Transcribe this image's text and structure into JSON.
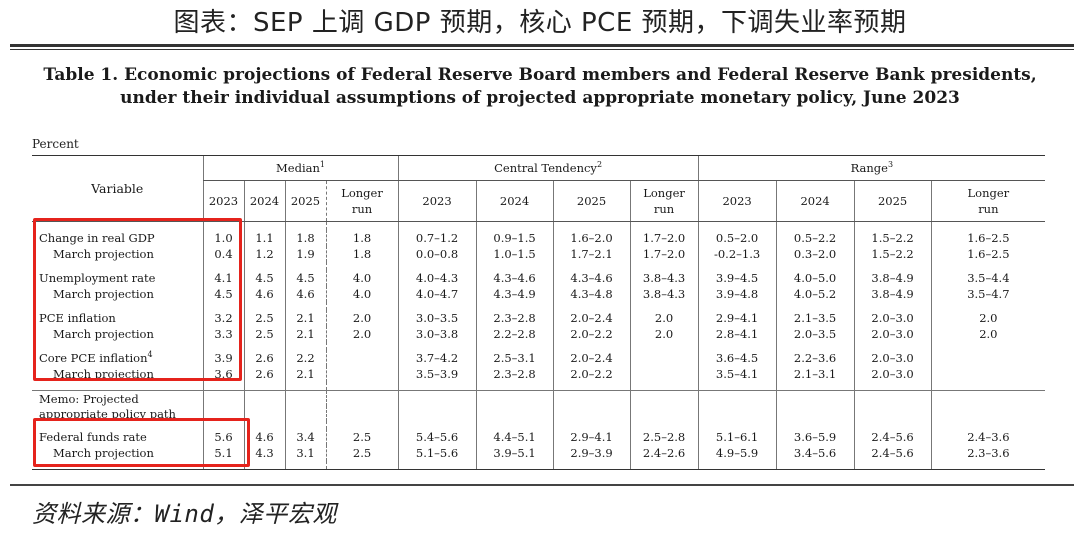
{
  "page_title": "图表：SEP 上调 GDP 预期，核心 PCE 预期，下调失业率预期",
  "table": {
    "caption_line1": "Table 1. Economic projections of Federal Reserve Board members and Federal Reserve Bank presidents,",
    "caption_line2": "under their individual assumptions of projected appropriate monetary policy, June 2023",
    "unit": "Percent",
    "variable_header": "Variable",
    "groups": [
      {
        "label": "Median",
        "note": "1"
      },
      {
        "label": "Central Tendency",
        "note": "2"
      },
      {
        "label": "Range",
        "note": "3"
      }
    ],
    "years": [
      "2023",
      "2024",
      "2025"
    ],
    "longer_run_line1": "Longer",
    "longer_run_line2": "run",
    "rows": {
      "gdp": {
        "label": "Change in real GDP",
        "values": [
          "1.0",
          "1.1",
          "1.8",
          "1.8",
          "0.7–1.2",
          "0.9–1.5",
          "1.6–2.0",
          "1.7–2.0",
          "0.5–2.0",
          "0.5–2.2",
          "1.5–2.2",
          "1.6–2.5"
        ]
      },
      "gdp_march": {
        "label": "March projection",
        "values": [
          "0.4",
          "1.2",
          "1.9",
          "1.8",
          "0.0–0.8",
          "1.0–1.5",
          "1.7–2.1",
          "1.7–2.0",
          "-0.2–1.3",
          "0.3–2.0",
          "1.5–2.2",
          "1.6–2.5"
        ]
      },
      "unemp": {
        "label": "Unemployment rate",
        "values": [
          "4.1",
          "4.5",
          "4.5",
          "4.0",
          "4.0–4.3",
          "4.3–4.6",
          "4.3–4.6",
          "3.8–4.3",
          "3.9–4.5",
          "4.0–5.0",
          "3.8–4.9",
          "3.5–4.4"
        ]
      },
      "unemp_march": {
        "label": "March projection",
        "values": [
          "4.5",
          "4.6",
          "4.6",
          "4.0",
          "4.0–4.7",
          "4.3–4.9",
          "4.3–4.8",
          "3.8–4.3",
          "3.9–4.8",
          "4.0–5.2",
          "3.8–4.9",
          "3.5–4.7"
        ]
      },
      "pce": {
        "label": "PCE inflation",
        "values": [
          "3.2",
          "2.5",
          "2.1",
          "2.0",
          "3.0–3.5",
          "2.3–2.8",
          "2.0–2.4",
          "2.0",
          "2.9–4.1",
          "2.1–3.5",
          "2.0–3.0",
          "2.0"
        ]
      },
      "pce_march": {
        "label": "March projection",
        "values": [
          "3.3",
          "2.5",
          "2.1",
          "2.0",
          "3.0–3.8",
          "2.2–2.8",
          "2.0–2.2",
          "2.0",
          "2.8–4.1",
          "2.0–3.5",
          "2.0–3.0",
          "2.0"
        ]
      },
      "core": {
        "label": "Core PCE inflation",
        "note": "4",
        "values": [
          "3.9",
          "2.6",
          "2.2",
          "",
          "3.7–4.2",
          "2.5–3.1",
          "2.0–2.4",
          "",
          "3.6–4.5",
          "2.2–3.6",
          "2.0–3.0",
          ""
        ]
      },
      "core_march": {
        "label": "March projection",
        "values": [
          "3.6",
          "2.6",
          "2.1",
          "",
          "3.5–3.9",
          "2.3–2.8",
          "2.0–2.2",
          "",
          "3.5–4.1",
          "2.1–3.1",
          "2.0–3.0",
          ""
        ]
      },
      "memo_line1": "Memo: Projected",
      "memo_line2": "appropriate policy path",
      "ffr": {
        "label": "Federal funds rate",
        "values": [
          "5.6",
          "4.6",
          "3.4",
          "2.5",
          "5.4–5.6",
          "4.4–5.1",
          "2.9–4.1",
          "2.5–2.8",
          "5.1–6.1",
          "3.6–5.9",
          "2.4–5.6",
          "2.4–3.6"
        ]
      },
      "ffr_march": {
        "label": "March projection",
        "values": [
          "5.1",
          "4.3",
          "3.1",
          "2.5",
          "5.1–5.6",
          "3.9–5.1",
          "2.9–3.9",
          "2.4–2.6",
          "4.9–5.9",
          "3.4–5.6",
          "2.4–5.6",
          "2.3–3.6"
        ]
      }
    }
  },
  "highlight_color": "#e5231c",
  "source": "资料来源：Wind，泽平宏观"
}
